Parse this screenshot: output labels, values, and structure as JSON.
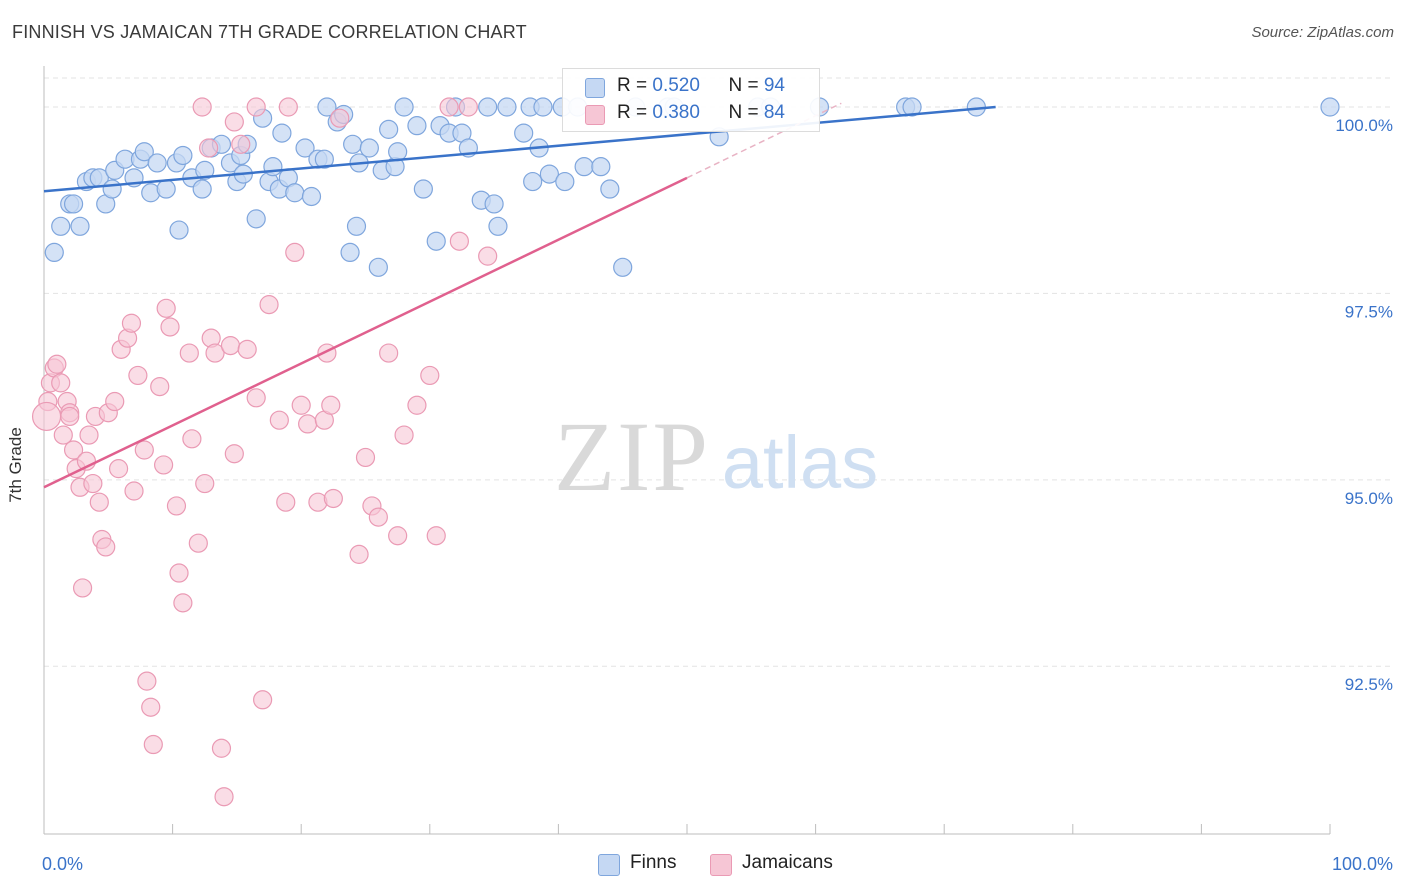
{
  "title": "FINNISH VS JAMAICAN 7TH GRADE CORRELATION CHART",
  "source": "Source: ZipAtlas.com",
  "watermark": {
    "zip": "ZIP",
    "atlas": "atlas"
  },
  "colors": {
    "blue": "#3a73c9",
    "blue_fill": "#c5d8f3",
    "blue_stroke": "#7fa6dd",
    "pink": "#e0608e",
    "pink_fill": "#f6c6d5",
    "pink_stroke": "#ea9ab4",
    "tick_text": "#3a73c9",
    "grid": "#e3e3e3"
  },
  "legend_top": {
    "rows": [
      {
        "r_label": "R = ",
        "r_value": "0.520",
        "n_label": "N = ",
        "n_value": "94"
      },
      {
        "r_label": "R = ",
        "r_value": "0.380",
        "n_label": "N = ",
        "n_value": "84"
      }
    ]
  },
  "legend_bottom": {
    "items": [
      "Finns",
      "Jamaicans"
    ]
  },
  "chart_data": {
    "type": "scatter",
    "title": "FINNISH VS JAMAICAN 7TH GRADE CORRELATION CHART",
    "xlabel": "",
    "ylabel": "7th Grade",
    "xlim": [
      0,
      100
    ],
    "ylim": [
      90.25,
      100.55
    ],
    "x_tick_labels": [
      "0.0%",
      "100.0%"
    ],
    "y_ticks": [
      92.5,
      95.0,
      97.5,
      100.0
    ],
    "y_tick_labels": [
      "92.5%",
      "95.0%",
      "97.5%",
      "100.0%"
    ],
    "grid": true,
    "legend": "top-center",
    "series": [
      {
        "name": "Finns",
        "r": 0.52,
        "n": 94,
        "trend": {
          "x": [
            0,
            74
          ],
          "y": [
            98.87,
            100.0
          ]
        },
        "points": [
          [
            0.8,
            98.05
          ],
          [
            1.3,
            98.4
          ],
          [
            2.0,
            98.7
          ],
          [
            2.3,
            98.7
          ],
          [
            2.8,
            98.4
          ],
          [
            3.3,
            99.0
          ],
          [
            3.8,
            99.05
          ],
          [
            4.3,
            99.05
          ],
          [
            4.8,
            98.7
          ],
          [
            5.3,
            98.9
          ],
          [
            5.5,
            99.15
          ],
          [
            6.3,
            99.3
          ],
          [
            7.0,
            99.05
          ],
          [
            7.5,
            99.3
          ],
          [
            7.8,
            99.4
          ],
          [
            8.3,
            98.85
          ],
          [
            8.8,
            99.25
          ],
          [
            9.5,
            98.9
          ],
          [
            10.3,
            99.25
          ],
          [
            10.5,
            98.35
          ],
          [
            10.8,
            99.35
          ],
          [
            11.5,
            99.05
          ],
          [
            12.3,
            98.9
          ],
          [
            12.5,
            99.15
          ],
          [
            13.0,
            99.45
          ],
          [
            13.8,
            99.5
          ],
          [
            14.5,
            99.25
          ],
          [
            15.0,
            99.0
          ],
          [
            15.3,
            99.35
          ],
          [
            15.5,
            99.1
          ],
          [
            15.8,
            99.5
          ],
          [
            16.5,
            98.5
          ],
          [
            17.0,
            99.85
          ],
          [
            17.5,
            99.0
          ],
          [
            17.8,
            99.2
          ],
          [
            18.3,
            98.9
          ],
          [
            18.5,
            99.65
          ],
          [
            19.0,
            99.05
          ],
          [
            19.5,
            98.85
          ],
          [
            20.3,
            99.45
          ],
          [
            20.8,
            98.8
          ],
          [
            21.3,
            99.3
          ],
          [
            21.8,
            99.3
          ],
          [
            22.0,
            100.0
          ],
          [
            22.8,
            99.8
          ],
          [
            23.3,
            99.9
          ],
          [
            23.8,
            98.05
          ],
          [
            24.0,
            99.5
          ],
          [
            24.3,
            98.4
          ],
          [
            24.5,
            99.25
          ],
          [
            25.3,
            99.45
          ],
          [
            26.0,
            97.85
          ],
          [
            26.3,
            99.15
          ],
          [
            26.8,
            99.7
          ],
          [
            27.3,
            99.2
          ],
          [
            27.5,
            99.4
          ],
          [
            28.0,
            100.0
          ],
          [
            29.0,
            99.75
          ],
          [
            29.5,
            98.9
          ],
          [
            30.5,
            98.2
          ],
          [
            30.8,
            99.75
          ],
          [
            31.5,
            99.65
          ],
          [
            32.0,
            100.0
          ],
          [
            32.5,
            99.65
          ],
          [
            33.0,
            99.45
          ],
          [
            34.0,
            98.75
          ],
          [
            34.5,
            100.0
          ],
          [
            35.0,
            98.7
          ],
          [
            35.3,
            98.4
          ],
          [
            36.0,
            100.0
          ],
          [
            37.3,
            99.65
          ],
          [
            37.8,
            100.0
          ],
          [
            38.0,
            99.0
          ],
          [
            38.5,
            99.45
          ],
          [
            38.8,
            100.0
          ],
          [
            39.3,
            99.1
          ],
          [
            40.3,
            100.0
          ],
          [
            40.5,
            99.0
          ],
          [
            41.5,
            100.0
          ],
          [
            42.0,
            99.2
          ],
          [
            43.3,
            99.2
          ],
          [
            44.0,
            98.9
          ],
          [
            45.0,
            97.85
          ],
          [
            46.0,
            100.0
          ],
          [
            48.5,
            100.0
          ],
          [
            49.0,
            100.0
          ],
          [
            52.5,
            99.6
          ],
          [
            55.5,
            100.0
          ],
          [
            56.5,
            100.0
          ],
          [
            60.3,
            100.0
          ],
          [
            67.0,
            100.0
          ],
          [
            67.5,
            100.0
          ],
          [
            72.5,
            100.0
          ],
          [
            100.0,
            100.0
          ]
        ]
      },
      {
        "name": "Jamaicans",
        "r": 0.38,
        "n": 84,
        "trend": {
          "x": [
            0,
            50
          ],
          "y": [
            94.9,
            99.05
          ]
        },
        "trend_dashed": {
          "x": [
            50,
            62
          ],
          "y": [
            99.05,
            100.05
          ]
        },
        "points": [
          [
            0.3,
            96.05
          ],
          [
            0.5,
            96.3
          ],
          [
            0.8,
            96.5
          ],
          [
            1.0,
            96.55
          ],
          [
            1.3,
            96.3
          ],
          [
            1.5,
            95.6
          ],
          [
            1.8,
            96.05
          ],
          [
            2.0,
            95.9
          ],
          [
            2.0,
            95.85
          ],
          [
            2.3,
            95.4
          ],
          [
            2.5,
            95.15
          ],
          [
            2.8,
            94.9
          ],
          [
            3.0,
            93.55
          ],
          [
            3.3,
            95.25
          ],
          [
            3.5,
            95.6
          ],
          [
            3.8,
            94.95
          ],
          [
            4.0,
            95.85
          ],
          [
            4.3,
            94.7
          ],
          [
            4.5,
            94.2
          ],
          [
            4.8,
            94.1
          ],
          [
            5.0,
            95.9
          ],
          [
            5.5,
            96.05
          ],
          [
            5.8,
            95.15
          ],
          [
            6.0,
            96.75
          ],
          [
            6.5,
            96.9
          ],
          [
            6.8,
            97.1
          ],
          [
            7.0,
            94.85
          ],
          [
            7.3,
            96.4
          ],
          [
            7.8,
            95.4
          ],
          [
            8.0,
            92.3
          ],
          [
            8.3,
            91.95
          ],
          [
            8.5,
            91.45
          ],
          [
            9.0,
            96.25
          ],
          [
            9.3,
            95.2
          ],
          [
            9.5,
            97.3
          ],
          [
            9.8,
            97.05
          ],
          [
            10.3,
            94.65
          ],
          [
            10.5,
            93.75
          ],
          [
            10.8,
            93.35
          ],
          [
            11.3,
            96.7
          ],
          [
            11.5,
            95.55
          ],
          [
            12.0,
            94.15
          ],
          [
            12.5,
            94.95
          ],
          [
            13.0,
            96.9
          ],
          [
            13.3,
            96.7
          ],
          [
            13.8,
            91.4
          ],
          [
            14.0,
            90.75
          ],
          [
            14.5,
            96.8
          ],
          [
            14.8,
            95.35
          ],
          [
            15.3,
            99.5
          ],
          [
            15.8,
            96.75
          ],
          [
            16.5,
            96.1
          ],
          [
            17.0,
            92.05
          ],
          [
            17.5,
            97.35
          ],
          [
            18.3,
            95.8
          ],
          [
            18.8,
            94.7
          ],
          [
            19.5,
            98.05
          ],
          [
            20.0,
            96.0
          ],
          [
            20.5,
            95.75
          ],
          [
            21.3,
            94.7
          ],
          [
            21.8,
            95.8
          ],
          [
            22.3,
            96.0
          ],
          [
            22.5,
            94.75
          ],
          [
            23.0,
            99.85
          ],
          [
            24.5,
            94.0
          ],
          [
            25.0,
            95.3
          ],
          [
            25.5,
            94.65
          ],
          [
            26.0,
            94.5
          ],
          [
            26.8,
            96.7
          ],
          [
            27.5,
            94.25
          ],
          [
            28.0,
            95.6
          ],
          [
            29.0,
            96.0
          ],
          [
            30.0,
            96.4
          ],
          [
            30.5,
            94.25
          ],
          [
            31.5,
            100.0
          ],
          [
            32.3,
            98.2
          ],
          [
            33.0,
            100.0
          ],
          [
            34.5,
            98.0
          ],
          [
            12.3,
            100.0
          ],
          [
            14.8,
            99.8
          ],
          [
            16.5,
            100.0
          ],
          [
            19.0,
            100.0
          ],
          [
            12.8,
            99.45
          ],
          [
            22.0,
            96.7
          ]
        ]
      }
    ]
  }
}
